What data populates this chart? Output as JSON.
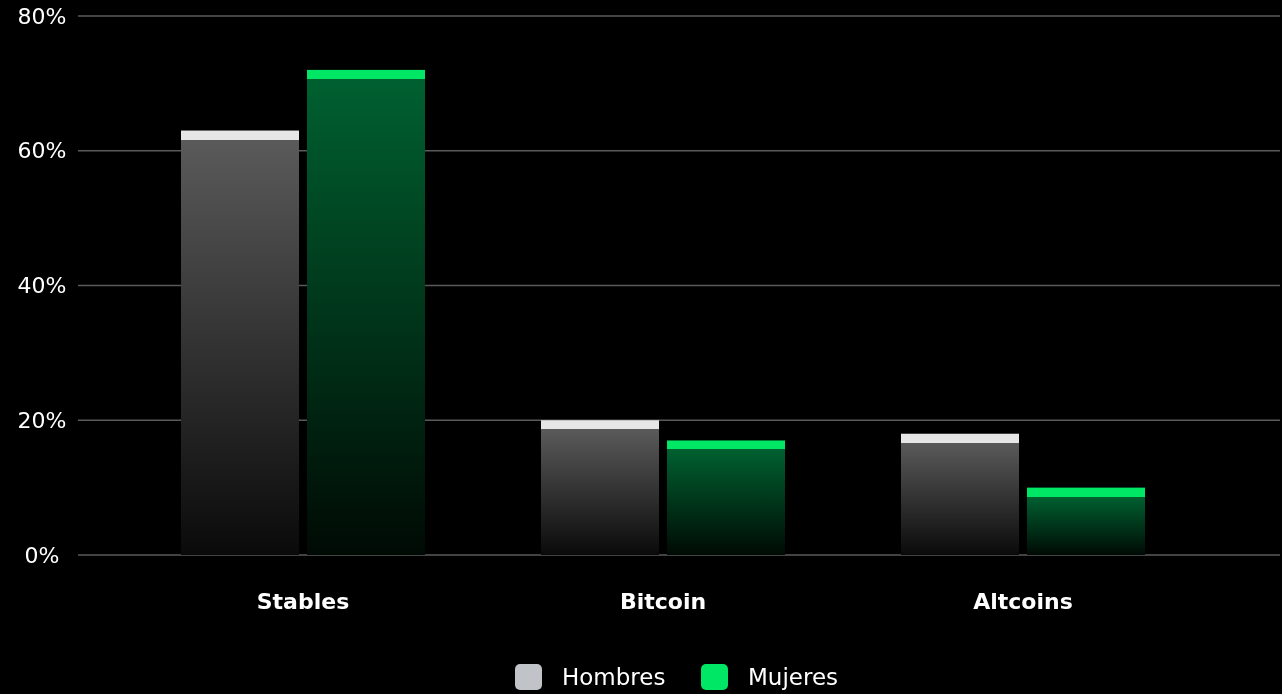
{
  "chart_data": {
    "type": "bar",
    "categories": [
      "Stables",
      "Bitcoin",
      "Altcoins"
    ],
    "series": [
      {
        "name": "Hombres",
        "color": "#c0c4c8",
        "values": [
          63,
          20,
          18
        ]
      },
      {
        "name": "Mujeres",
        "color": "#00e765",
        "values": [
          72,
          17,
          10
        ]
      }
    ],
    "ylim": [
      0,
      80
    ],
    "yticks": [
      {
        "value": 0,
        "label": "0%"
      },
      {
        "value": 20,
        "label": "20%"
      },
      {
        "value": 40,
        "label": "40%"
      },
      {
        "value": 60,
        "label": "60%"
      },
      {
        "value": 80,
        "label": "80%"
      }
    ],
    "grid": "y",
    "legend": "bottom"
  }
}
